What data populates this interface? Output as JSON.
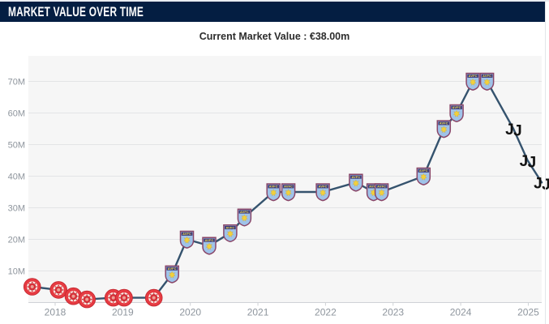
{
  "header": {
    "title": "MARKET VALUE OVER TIME"
  },
  "subtitle": {
    "text": "Current Market Value : €38.00m"
  },
  "colors": {
    "header_bg": "#041e42",
    "header_text": "#ffffff",
    "subtitle_text": "#2d2d2d",
    "plot_bg": "#f6f6f6",
    "gridline": "#e3e4e6",
    "axis_line": "#cfd2d6",
    "axis_label": "#8e959d",
    "line": "#35536e",
    "red_badge": "#e63b42",
    "villa_blue": "#9fc3e9",
    "villa_claret": "#8a4668",
    "villa_yellow": "#f2d03c",
    "juventus_black": "#121212"
  },
  "chart_data": {
    "type": "line",
    "title": "Market Value Over Time",
    "subtitle": "Current Market Value : €38.00m",
    "currency": "EUR",
    "unit": "million",
    "grid": "horizontal",
    "legend": "none",
    "x_axis": {
      "ticks": [
        2018,
        2019,
        2020,
        2021,
        2022,
        2023,
        2024,
        2025
      ],
      "range": [
        2017.6,
        2025.25
      ]
    },
    "y_axis": {
      "tick_labels": [
        "10M",
        "20M",
        "30M",
        "40M",
        "50M",
        "60M",
        "70M"
      ],
      "tick_values": [
        10,
        20,
        30,
        40,
        50,
        60,
        70
      ],
      "range": [
        0,
        78
      ]
    },
    "marker_icons": {
      "red-badge": "red-club-badge-icon",
      "aston-villa": "aston-villa-crest-icon",
      "juventus": "juventus-logo-icon"
    },
    "series": [
      {
        "name": "Market value (€m)",
        "color": "#35536e",
        "points": [
          {
            "x": 2017.66,
            "value": 5,
            "club": "red-badge"
          },
          {
            "x": 2018.05,
            "value": 4,
            "club": "red-badge"
          },
          {
            "x": 2018.27,
            "value": 2,
            "club": "red-badge"
          },
          {
            "x": 2018.47,
            "value": 1,
            "club": "red-badge"
          },
          {
            "x": 2018.86,
            "value": 1.5,
            "club": "red-badge"
          },
          {
            "x": 2019.02,
            "value": 1.5,
            "club": "red-badge"
          },
          {
            "x": 2019.46,
            "value": 1.5,
            "club": "red-badge"
          },
          {
            "x": 2019.73,
            "value": 9,
            "club": "aston-villa"
          },
          {
            "x": 2019.95,
            "value": 20,
            "club": "aston-villa"
          },
          {
            "x": 2020.28,
            "value": 18,
            "club": "aston-villa"
          },
          {
            "x": 2020.59,
            "value": 22,
            "club": "aston-villa"
          },
          {
            "x": 2020.8,
            "value": 27,
            "club": "aston-villa"
          },
          {
            "x": 2021.23,
            "value": 35,
            "club": "aston-villa"
          },
          {
            "x": 2021.45,
            "value": 35,
            "club": "aston-villa"
          },
          {
            "x": 2021.96,
            "value": 35,
            "club": "aston-villa"
          },
          {
            "x": 2022.45,
            "value": 38,
            "club": "aston-villa"
          },
          {
            "x": 2022.71,
            "value": 35,
            "club": "aston-villa"
          },
          {
            "x": 2022.83,
            "value": 35,
            "club": "aston-villa"
          },
          {
            "x": 2023.45,
            "value": 40,
            "club": "aston-villa"
          },
          {
            "x": 2023.75,
            "value": 55,
            "club": "aston-villa"
          },
          {
            "x": 2023.94,
            "value": 60,
            "club": "aston-villa"
          },
          {
            "x": 2024.18,
            "value": 70,
            "club": "aston-villa"
          },
          {
            "x": 2024.39,
            "value": 70,
            "club": "aston-villa"
          },
          {
            "x": 2024.78,
            "value": 55,
            "club": "juventus"
          },
          {
            "x": 2024.99,
            "value": 45,
            "club": "juventus"
          },
          {
            "x": 2025.2,
            "value": 38,
            "club": "juventus"
          }
        ]
      }
    ]
  }
}
